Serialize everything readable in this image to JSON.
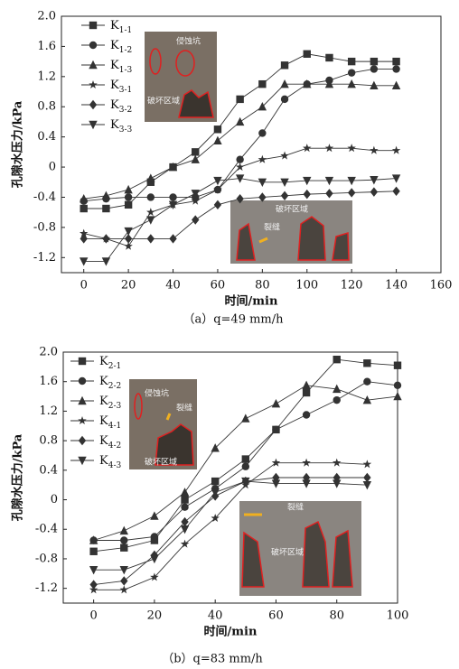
{
  "chart_data": [
    {
      "type": "line",
      "caption": "（a）q=49 mm/h",
      "x_label": "时间/min",
      "y_label": "孔隙水压力/kPa",
      "x": [
        0,
        10,
        20,
        30,
        40,
        50,
        60,
        70,
        80,
        90,
        100,
        110,
        120,
        130,
        140
      ],
      "xlim": [
        -10,
        160
      ],
      "xticks": [
        0,
        20,
        40,
        60,
        80,
        100,
        120,
        140,
        160
      ],
      "ylim": [
        -1.4,
        2.0
      ],
      "yticks": [
        -1.2,
        -0.8,
        -0.4,
        0,
        0.4,
        0.8,
        1.2,
        1.6,
        {
          "value": 2,
          "label": "2.0"
        }
      ],
      "annotations": [
        "侵蚀坑",
        "破坏区域",
        "破坏区域",
        "裂缝"
      ],
      "series": [
        {
          "name": "K1-1",
          "color": "#333333",
          "marker": "square",
          "values": [
            -0.55,
            -0.55,
            -0.5,
            -0.2,
            0,
            0.2,
            0.5,
            0.9,
            1.1,
            1.35,
            1.5,
            1.45,
            1.4,
            1.4,
            1.4
          ]
        },
        {
          "name": "K1-2",
          "color": "#333333",
          "marker": "circle",
          "values": [
            -0.45,
            -0.42,
            -0.4,
            -0.4,
            -0.4,
            -0.4,
            -0.3,
            0.1,
            0.45,
            0.9,
            1.1,
            1.15,
            1.25,
            1.3,
            1.3
          ]
        },
        {
          "name": "K1-3",
          "color": "#333333",
          "marker": "triangle",
          "values": [
            -0.42,
            -0.38,
            -0.3,
            -0.15,
            0,
            0.1,
            0.35,
            0.6,
            0.8,
            1.1,
            1.1,
            1.1,
            1.1,
            1.08,
            1.08
          ]
        },
        {
          "name": "K3-1",
          "color": "#333333",
          "marker": "star",
          "values": [
            -0.88,
            -0.95,
            -1.05,
            -0.6,
            -0.5,
            -0.45,
            -0.3,
            0,
            0.1,
            0.15,
            0.25,
            0.25,
            0.25,
            0.22,
            0.22
          ]
        },
        {
          "name": "K3-2",
          "color": "#333333",
          "marker": "diamond",
          "values": [
            -0.95,
            -0.95,
            -0.95,
            -0.95,
            -0.95,
            -0.7,
            -0.5,
            -0.42,
            -0.4,
            -0.38,
            -0.36,
            -0.35,
            -0.34,
            -0.33,
            -0.32
          ]
        },
        {
          "name": "K3-3",
          "color": "#333333",
          "marker": "triangle-down",
          "values": [
            -1.25,
            -1.25,
            -0.85,
            -0.7,
            -0.5,
            -0.35,
            -0.18,
            -0.15,
            -0.2,
            -0.2,
            -0.18,
            -0.18,
            -0.18,
            -0.17,
            -0.15
          ]
        }
      ]
    },
    {
      "type": "line",
      "caption": "（b）q=83 mm/h",
      "x_label": "时间/min",
      "y_label": "孔隙水压力/kPa",
      "x": [
        0,
        10,
        20,
        30,
        40,
        50,
        60,
        70,
        80,
        90,
        100
      ],
      "xlim": [
        -10,
        100
      ],
      "xticks": [
        0,
        20,
        40,
        60,
        80,
        100
      ],
      "ylim": [
        -1.4,
        2.0
      ],
      "yticks": [
        -1.2,
        -0.8,
        -0.4,
        0,
        0.4,
        0.8,
        1.2,
        1.6,
        {
          "value": 2,
          "label": "2.0"
        }
      ],
      "annotations": [
        "侵蚀坑",
        "裂缝",
        "破坏区域",
        "裂缝",
        "破坏区域"
      ],
      "series": [
        {
          "name": "K2-1",
          "color": "#333333",
          "marker": "square",
          "values": [
            -0.7,
            -0.65,
            -0.55,
            0,
            0.25,
            0.55,
            0.95,
            1.45,
            1.9,
            1.85,
            1.82
          ]
        },
        {
          "name": "K2-2",
          "color": "#333333",
          "marker": "circle",
          "values": [
            -0.55,
            -0.55,
            -0.5,
            -0.1,
            0.15,
            0.45,
            0.95,
            1.15,
            1.35,
            1.6,
            1.55
          ]
        },
        {
          "name": "K2-3",
          "color": "#333333",
          "marker": "triangle",
          "values": [
            -0.55,
            -0.42,
            -0.22,
            0.1,
            0.7,
            1.1,
            1.3,
            1.55,
            1.5,
            1.35,
            1.4
          ]
        },
        {
          "name": "K4-1",
          "color": "#333333",
          "marker": "star",
          "values": [
            -1.22,
            -1.22,
            -1.05,
            -0.6,
            -0.25,
            0.2,
            0.5,
            0.5,
            0.5,
            0.48,
            null
          ]
        },
        {
          "name": "K4-2",
          "color": "#333333",
          "marker": "diamond",
          "values": [
            -1.15,
            -1.1,
            -0.75,
            -0.3,
            0.05,
            0.25,
            0.3,
            0.3,
            0.3,
            0.3,
            null
          ]
        },
        {
          "name": "K4-3",
          "color": "#333333",
          "marker": "triangle-down",
          "values": [
            -0.95,
            -0.95,
            -0.8,
            -0.4,
            0.1,
            0.25,
            0.22,
            0.22,
            0.22,
            0.2,
            null
          ]
        }
      ]
    }
  ]
}
